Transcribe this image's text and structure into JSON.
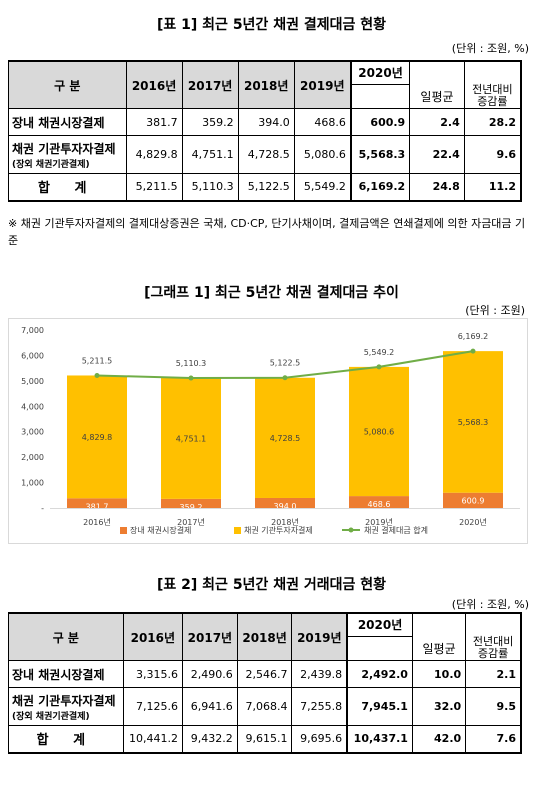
{
  "table1": {
    "title": "[표 1] 최근 5년간 채권 결제대금 현황",
    "unit": "(단위 : 조원, %)",
    "header": {
      "gubun": "구    분",
      "years": [
        "2016년",
        "2017년",
        "2018년",
        "2019년",
        "2020년"
      ],
      "avg": "일평균",
      "yoy": "전년대비 증감률"
    },
    "rows": [
      {
        "label": "장내 채권시장결제",
        "sub": "",
        "values": [
          "381.7",
          "359.2",
          "394.0",
          "468.6",
          "600.9"
        ],
        "avg": "2.4",
        "yoy": "28.2"
      },
      {
        "label": "채권 기관투자자결제",
        "sub": "(장외 채권기관결제)",
        "values": [
          "4,829.8",
          "4,751.1",
          "4,728.5",
          "5,080.6",
          "5,568.3"
        ],
        "avg": "22.4",
        "yoy": "9.6"
      },
      {
        "label": "합  계",
        "sub": "",
        "values": [
          "5,211.5",
          "5,110.3",
          "5,122.5",
          "5,549.2",
          "6,169.2"
        ],
        "avg": "24.8",
        "yoy": "11.2"
      }
    ]
  },
  "note": "※ 채권 기관투자자결제의 결제대상증권은 국채, CD·CP, 단기사채이며, 결제금액은 연쇄결제에 의한 자금대금 기준",
  "graph1": {
    "title": "[그래프 1] 최근 5년간 채권 결제대금 추이",
    "unit": "(단위 : 조원)"
  },
  "chart_data": {
    "type": "bar",
    "stacked": true,
    "categories": [
      "2016년",
      "2017년",
      "2018년",
      "2019년",
      "2020년"
    ],
    "series": [
      {
        "name": "장내 채권시장결제",
        "values": [
          381.7,
          359.2,
          394.0,
          468.6,
          600.9
        ],
        "labels": [
          "381.7",
          "359.2",
          "394.0",
          "468.6",
          "600.9"
        ],
        "color": "#ed7d31"
      },
      {
        "name": "채권 기관투자자결제",
        "values": [
          4829.8,
          4751.1,
          4728.5,
          5080.6,
          5568.3
        ],
        "labels": [
          "4,829.8",
          "4,751.1",
          "4,728.5",
          "5,080.6",
          "5,568.3"
        ],
        "color": "#ffc000"
      },
      {
        "name": "채권 결제대금 합계",
        "type": "line",
        "values": [
          5211.5,
          5110.3,
          5122.5,
          5549.2,
          6169.2
        ],
        "labels": [
          "5,211.5",
          "5,110.3",
          "5,122.5",
          "5,549.2",
          "6,169.2"
        ],
        "color": "#70ad47"
      }
    ],
    "ylim": [
      0,
      7000
    ],
    "yticks": [
      "-",
      "1,000",
      "2,000",
      "3,000",
      "4,000",
      "5,000",
      "6,000",
      "7,000"
    ],
    "xticks": [
      "2016년",
      "2017년",
      "2018년",
      "2019년",
      "2020년"
    ],
    "legend": "bottom",
    "grid": false
  },
  "table2": {
    "title": "[표 2] 최근 5년간 채권 거래대금 현황",
    "unit": "(단위 : 조원, %)",
    "header": {
      "gubun": "구    분",
      "years": [
        "2016년",
        "2017년",
        "2018년",
        "2019년",
        "2020년"
      ],
      "avg": "일평균",
      "yoy": "전년대비 증감률"
    },
    "rows": [
      {
        "label": "장내 채권시장결제",
        "sub": "",
        "values": [
          "3,315.6",
          "2,490.6",
          "2,546.7",
          "2,439.8",
          "2,492.0"
        ],
        "avg": "10.0",
        "yoy": "2.1"
      },
      {
        "label": "채권 기관투자자결제",
        "sub": "(장외 채권기관결제)",
        "values": [
          "7,125.6",
          "6,941.6",
          "7,068.4",
          "7,255.8",
          "7,945.1"
        ],
        "avg": "32.0",
        "yoy": "9.5"
      },
      {
        "label": "합  계",
        "sub": "",
        "values": [
          "10,441.2",
          "9,432.2",
          "9,615.1",
          "9,695.6",
          "10,437.1"
        ],
        "avg": "42.0",
        "yoy": "7.6"
      }
    ]
  }
}
